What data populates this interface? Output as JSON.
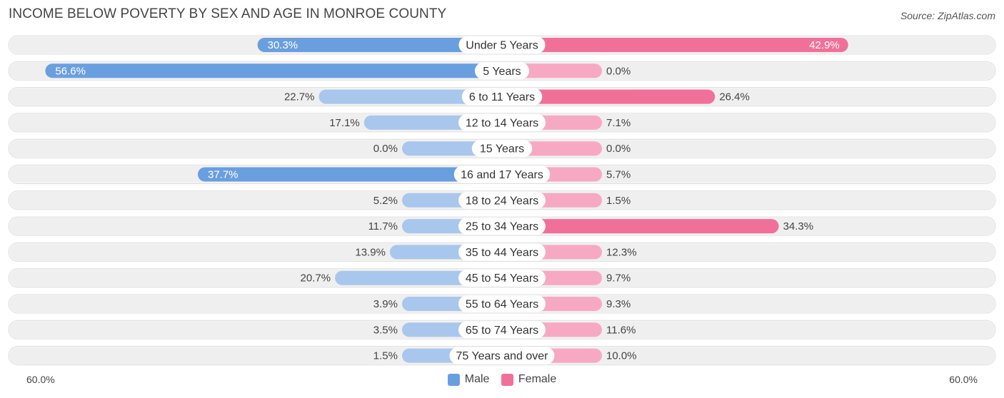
{
  "title": "INCOME BELOW POVERTY BY SEX AND AGE IN MONROE COUNTY",
  "source": "Source: ZipAtlas.com",
  "colors": {
    "male": "#6a9fdf",
    "male_light": "#a9c7ec",
    "female": "#f0709a",
    "female_light": "#f7a9c3",
    "track": "#efefef"
  },
  "chart_data": {
    "type": "bar",
    "orientation": "horizontal-diverging",
    "title": "INCOME BELOW POVERTY BY SEX AND AGE IN MONROE COUNTY",
    "categories": [
      "Under 5 Years",
      "5 Years",
      "6 to 11 Years",
      "12 to 14 Years",
      "15 Years",
      "16 and 17 Years",
      "18 to 24 Years",
      "25 to 34 Years",
      "35 to 44 Years",
      "45 to 54 Years",
      "55 to 64 Years",
      "65 to 74 Years",
      "75 Years and over"
    ],
    "series": [
      {
        "name": "Male",
        "values": [
          30.3,
          56.6,
          22.7,
          17.1,
          0.0,
          37.7,
          5.2,
          11.7,
          13.9,
          20.7,
          3.9,
          3.5,
          1.5
        ],
        "labels": [
          "30.3%",
          "56.6%",
          "22.7%",
          "17.1%",
          "0.0%",
          "37.7%",
          "5.2%",
          "11.7%",
          "13.9%",
          "20.7%",
          "3.9%",
          "3.5%",
          "1.5%"
        ]
      },
      {
        "name": "Female",
        "values": [
          42.9,
          0.0,
          26.4,
          7.1,
          0.0,
          5.7,
          1.5,
          34.3,
          12.3,
          9.7,
          9.3,
          11.6,
          10.0
        ],
        "labels": [
          "42.9%",
          "0.0%",
          "26.4%",
          "7.1%",
          "0.0%",
          "5.7%",
          "1.5%",
          "34.3%",
          "12.3%",
          "9.7%",
          "9.3%",
          "11.6%",
          "10.0%"
        ]
      }
    ],
    "xlim": [
      0,
      60
    ],
    "axis_min_label": "60.0%",
    "axis_max_label": "60.0%",
    "legend": [
      "Male",
      "Female"
    ]
  }
}
